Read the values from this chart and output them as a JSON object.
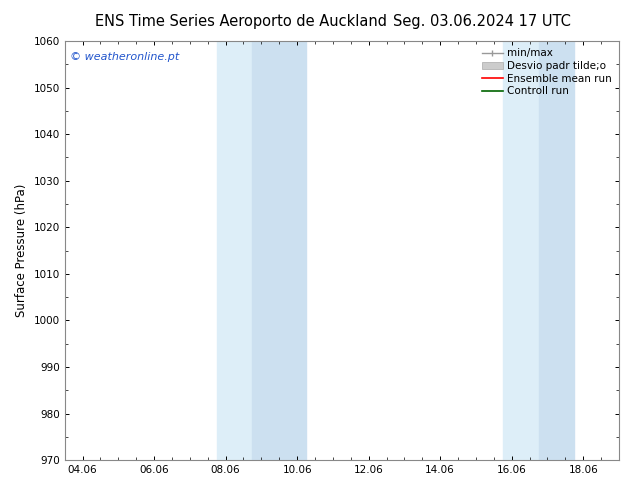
{
  "title_left": "ENS Time Series Aeroporto de Auckland",
  "title_right": "Seg. 03.06.2024 17 UTC",
  "ylabel": "Surface Pressure (hPa)",
  "ylim": [
    970,
    1060
  ],
  "yticks": [
    970,
    980,
    990,
    1000,
    1010,
    1020,
    1030,
    1040,
    1050,
    1060
  ],
  "xtick_labels": [
    "04.06",
    "06.06",
    "08.06",
    "10.06",
    "12.06",
    "14.06",
    "16.06",
    "18.06"
  ],
  "xtick_positions": [
    0,
    2,
    4,
    6,
    8,
    10,
    12,
    14
  ],
  "xmin": -0.5,
  "xmax": 15.0,
  "shade_band1_x0": 3.75,
  "shade_band1_mid": 4.75,
  "shade_band1_x1": 6.25,
  "shade_band2_x0": 11.75,
  "shade_band2_mid": 12.75,
  "shade_band2_x1": 13.75,
  "shade_color_light": "#ddeef8",
  "shade_color_dark": "#cce0f0",
  "watermark_text": "© weatheronline.pt",
  "watermark_color": "#2255cc",
  "bg_color": "#ffffff",
  "tick_fontsize": 7.5,
  "ylabel_fontsize": 8.5,
  "title_fontsize": 10.5,
  "legend_fontsize": 7.5,
  "spine_color": "#888888"
}
